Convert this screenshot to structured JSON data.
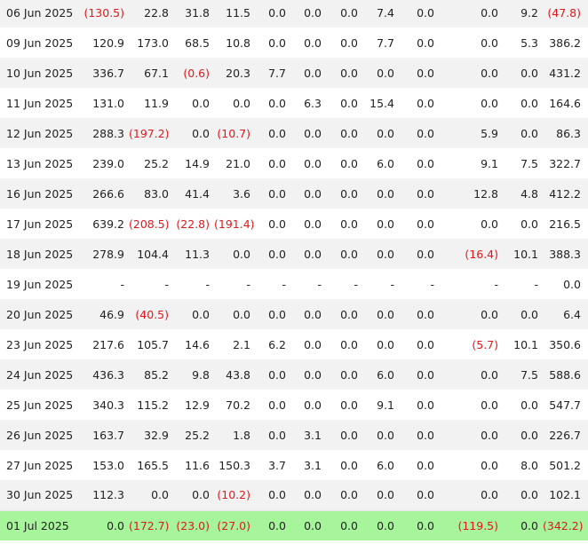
{
  "rows": [
    {
      "date": "06 Jun 2025",
      "values": [
        "(130.5)",
        "22.8",
        "31.8",
        "11.5",
        "0.0",
        "0.0",
        "0.0",
        "7.4",
        "0.0",
        "0.0",
        "9.2",
        "(47.8)"
      ]
    },
    {
      "date": "09 Jun 2025",
      "values": [
        "120.9",
        "173.0",
        "68.5",
        "10.8",
        "0.0",
        "0.0",
        "0.0",
        "7.7",
        "0.0",
        "0.0",
        "5.3",
        "386.2"
      ]
    },
    {
      "date": "10 Jun 2025",
      "values": [
        "336.7",
        "67.1",
        "(0.6)",
        "20.3",
        "7.7",
        "0.0",
        "0.0",
        "0.0",
        "0.0",
        "0.0",
        "0.0",
        "431.2"
      ]
    },
    {
      "date": "11 Jun 2025",
      "values": [
        "131.0",
        "11.9",
        "0.0",
        "0.0",
        "0.0",
        "6.3",
        "0.0",
        "15.4",
        "0.0",
        "0.0",
        "0.0",
        "164.6"
      ]
    },
    {
      "date": "12 Jun 2025",
      "values": [
        "288.3",
        "(197.2)",
        "0.0",
        "(10.7)",
        "0.0",
        "0.0",
        "0.0",
        "0.0",
        "0.0",
        "5.9",
        "0.0",
        "86.3"
      ]
    },
    {
      "date": "13 Jun 2025",
      "values": [
        "239.0",
        "25.2",
        "14.9",
        "21.0",
        "0.0",
        "0.0",
        "0.0",
        "6.0",
        "0.0",
        "9.1",
        "7.5",
        "322.7"
      ]
    },
    {
      "date": "16 Jun 2025",
      "values": [
        "266.6",
        "83.0",
        "41.4",
        "3.6",
        "0.0",
        "0.0",
        "0.0",
        "0.0",
        "0.0",
        "12.8",
        "4.8",
        "412.2"
      ]
    },
    {
      "date": "17 Jun 2025",
      "values": [
        "639.2",
        "(208.5)",
        "(22.8)",
        "(191.4)",
        "0.0",
        "0.0",
        "0.0",
        "0.0",
        "0.0",
        "0.0",
        "0.0",
        "216.5"
      ]
    },
    {
      "date": "18 Jun 2025",
      "values": [
        "278.9",
        "104.4",
        "11.3",
        "0.0",
        "0.0",
        "0.0",
        "0.0",
        "0.0",
        "0.0",
        "(16.4)",
        "10.1",
        "388.3"
      ]
    },
    {
      "date": "19 Jun 2025",
      "values": [
        "-",
        "-",
        "-",
        "-",
        "-",
        "-",
        "-",
        "-",
        "-",
        "-",
        "-",
        "0.0"
      ]
    },
    {
      "date": "20 Jun 2025",
      "values": [
        "46.9",
        "(40.5)",
        "0.0",
        "0.0",
        "0.0",
        "0.0",
        "0.0",
        "0.0",
        "0.0",
        "0.0",
        "0.0",
        "6.4"
      ]
    },
    {
      "date": "23 Jun 2025",
      "values": [
        "217.6",
        "105.7",
        "14.6",
        "2.1",
        "6.2",
        "0.0",
        "0.0",
        "0.0",
        "0.0",
        "(5.7)",
        "10.1",
        "350.6"
      ]
    },
    {
      "date": "24 Jun 2025",
      "values": [
        "436.3",
        "85.2",
        "9.8",
        "43.8",
        "0.0",
        "0.0",
        "0.0",
        "6.0",
        "0.0",
        "0.0",
        "7.5",
        "588.6"
      ]
    },
    {
      "date": "25 Jun 2025",
      "values": [
        "340.3",
        "115.2",
        "12.9",
        "70.2",
        "0.0",
        "0.0",
        "0.0",
        "9.1",
        "0.0",
        "0.0",
        "0.0",
        "547.7"
      ]
    },
    {
      "date": "26 Jun 2025",
      "values": [
        "163.7",
        "32.9",
        "25.2",
        "1.8",
        "0.0",
        "3.1",
        "0.0",
        "0.0",
        "0.0",
        "0.0",
        "0.0",
        "226.7"
      ]
    },
    {
      "date": "27 Jun 2025",
      "values": [
        "153.0",
        "165.5",
        "11.6",
        "150.3",
        "3.7",
        "3.1",
        "0.0",
        "6.0",
        "0.0",
        "0.0",
        "8.0",
        "501.2"
      ]
    },
    {
      "date": "30 Jun 2025",
      "values": [
        "112.3",
        "0.0",
        "0.0",
        "(10.2)",
        "0.0",
        "0.0",
        "0.0",
        "0.0",
        "0.0",
        "0.0",
        "0.0",
        "102.1"
      ]
    },
    {
      "date": "01 Jul 2025",
      "values": [
        "0.0",
        "(172.7)",
        "(23.0)",
        "(27.0)",
        "0.0",
        "0.0",
        "0.0",
        "0.0",
        "0.0",
        "(119.5)",
        "0.0",
        "(342.2)"
      ],
      "highlight": true
    }
  ],
  "colors": {
    "negative": "#e3171b",
    "highlight_row": "#a6f59a",
    "stripe": "#f2f2f2"
  }
}
